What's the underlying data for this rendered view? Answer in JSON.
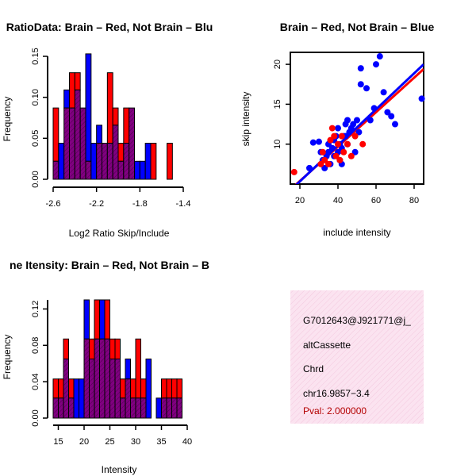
{
  "chart_data": [
    {
      "type": "bar",
      "title": "RatioData: Brain – Red, Not Brain – Blu",
      "xlabel": "Log2 Ratio Skip/Include",
      "ylabel": "Frequency",
      "xlim": [
        -2.6,
        -1.4
      ],
      "ylim": [
        0,
        0.15
      ],
      "xticks": [
        "-2.6",
        "-2.2",
        "-1.8",
        "-1.4"
      ],
      "yticks": [
        "0.00",
        "0.05",
        "0.10",
        "0.15"
      ],
      "bin_start": -2.6,
      "bin_width": 0.05,
      "series": [
        {
          "name": "Brain",
          "color": "#ff0000",
          "values": [
            0.087,
            0.0,
            0.087,
            0.13,
            0.13,
            0.087,
            0.022,
            0.0,
            0.044,
            0.044,
            0.13,
            0.087,
            0.044,
            0.087,
            0.087,
            0.0,
            0.0,
            0.0,
            0.044,
            0.0,
            0.0,
            0.044,
            0.0
          ]
        },
        {
          "name": "Not Brain",
          "color": "#0000ff",
          "values": [
            0.022,
            0.044,
            0.109,
            0.087,
            0.109,
            0.087,
            0.153,
            0.044,
            0.066,
            0.044,
            0.044,
            0.066,
            0.022,
            0.044,
            0.087,
            0.022,
            0.022,
            0.044,
            0.0,
            0.0,
            0.0,
            0.0,
            0.0
          ]
        }
      ]
    },
    {
      "type": "scatter",
      "title": "Brain – Red, Not Brain – Blue",
      "xlabel": "include intensity",
      "ylabel": "skip intensity",
      "xlim": [
        15,
        85
      ],
      "ylim": [
        5,
        21.5
      ],
      "xticks": [
        "20",
        "40",
        "60",
        "80"
      ],
      "yticks": [
        "10",
        "15",
        "20"
      ],
      "series": [
        {
          "name": "Brain",
          "color": "#ff0000",
          "points": [
            [
              17,
              6.5
            ],
            [
              31,
              7.5
            ],
            [
              32,
              9
            ],
            [
              33,
              8
            ],
            [
              35,
              7.5
            ],
            [
              36,
              10.5
            ],
            [
              37,
              12
            ],
            [
              38,
              11
            ],
            [
              39,
              8.5
            ],
            [
              40,
              10
            ],
            [
              41,
              8
            ],
            [
              42,
              11
            ],
            [
              43,
              9
            ],
            [
              45,
              10
            ],
            [
              47,
              8.5
            ],
            [
              49,
              11
            ],
            [
              53,
              10
            ]
          ],
          "fit": [
            [
              15,
              4.3
            ],
            [
              85,
              19.4
            ]
          ]
        },
        {
          "name": "Not Brain",
          "color": "#0000ff",
          "points": [
            [
              30,
              10.3
            ],
            [
              31,
              9
            ],
            [
              32,
              8
            ],
            [
              33,
              7
            ],
            [
              34,
              8.5
            ],
            [
              35,
              10
            ],
            [
              35,
              9
            ],
            [
              36,
              7.5
            ],
            [
              37,
              9.5
            ],
            [
              38,
              8.5
            ],
            [
              38,
              10.5
            ],
            [
              39,
              11
            ],
            [
              40,
              9
            ],
            [
              40,
              12
            ],
            [
              41,
              8
            ],
            [
              41,
              10
            ],
            [
              42,
              7.5
            ],
            [
              42,
              9.5
            ],
            [
              43,
              11
            ],
            [
              44,
              12.5
            ],
            [
              45,
              13
            ],
            [
              45,
              10
            ],
            [
              46,
              11.5
            ],
            [
              47,
              12
            ],
            [
              48,
              12.5
            ],
            [
              49,
              9
            ],
            [
              50,
              13
            ],
            [
              51,
              11.5
            ],
            [
              52,
              17.5
            ],
            [
              52,
              19.5
            ],
            [
              55,
              17
            ],
            [
              57,
              13
            ],
            [
              59,
              14.5
            ],
            [
              60,
              20
            ],
            [
              62,
              21
            ],
            [
              64,
              16.5
            ],
            [
              66,
              14
            ],
            [
              68,
              13.5
            ],
            [
              70,
              12.5
            ],
            [
              84,
              15.7
            ],
            [
              27,
              10.2
            ],
            [
              25,
              7
            ],
            [
              44,
              11
            ]
          ],
          "fit": [
            [
              15,
              4.2
            ],
            [
              85,
              20
            ]
          ]
        }
      ]
    },
    {
      "type": "bar",
      "title": "ne Itensity: Brain – Red, Not Brain – B",
      "xlabel": "Intensity",
      "ylabel": "Frequency",
      "xlim": [
        14,
        40
      ],
      "ylim": [
        0,
        0.13
      ],
      "xticks": [
        "15",
        "20",
        "25",
        "30",
        "35",
        "40"
      ],
      "yticks": [
        "0.00",
        "0.04",
        "0.08",
        "0.12"
      ],
      "bin_start": 14,
      "bin_width": 1,
      "series": [
        {
          "name": "Brain",
          "color": "#ff0000",
          "values": [
            0.043,
            0.043,
            0.087,
            0.043,
            0.0,
            0.0,
            0.087,
            0.087,
            0.13,
            0.087,
            0.13,
            0.087,
            0.087,
            0.043,
            0.043,
            0.043,
            0.087,
            0.043,
            0.0,
            0.0,
            0.0,
            0.043,
            0.043,
            0.043,
            0.043,
            0.0
          ]
        },
        {
          "name": "Not Brain",
          "color": "#0000ff",
          "values": [
            0.022,
            0.022,
            0.065,
            0.022,
            0.043,
            0.043,
            0.13,
            0.065,
            0.087,
            0.13,
            0.087,
            0.065,
            0.065,
            0.022,
            0.065,
            0.022,
            0.022,
            0.022,
            0.065,
            0.0,
            0.022,
            0.022,
            0.022,
            0.022,
            0.022,
            0.0
          ]
        }
      ]
    }
  ],
  "info_panel": {
    "id": "G7012643@J921771@j_",
    "event_type": "altCassette",
    "gene": "Chrd",
    "location": "chr16.9857−3.4",
    "pval": "Pval: 2.000000"
  },
  "colors": {
    "brain": "#ff0000",
    "not_brain": "#0000ff",
    "overlap": "#800080",
    "panel_bg": "#fbe3f0",
    "pval_text": "#b40000"
  }
}
